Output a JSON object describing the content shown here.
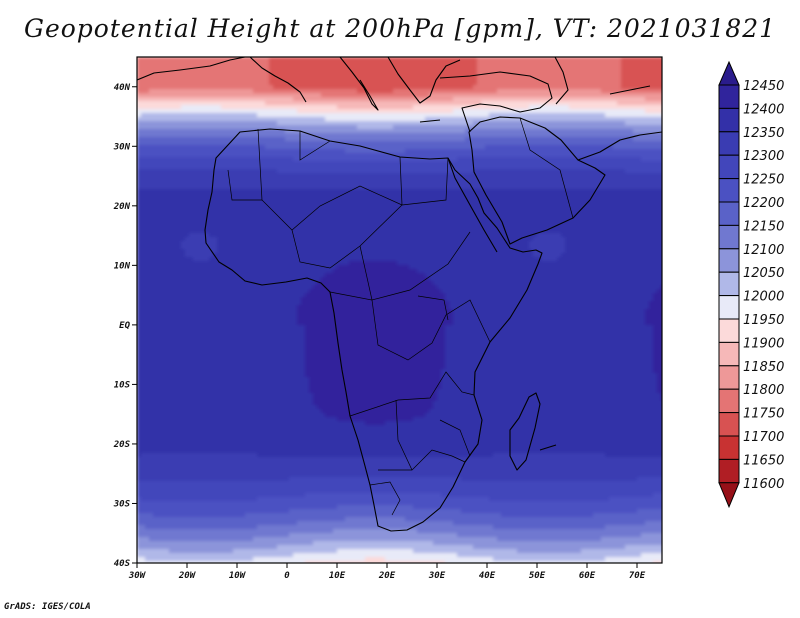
{
  "title": "Geopotential Height at 200hPa [gpm], VT: 2021031821",
  "credit": "GrADS: IGES/COLA",
  "map": {
    "lon_range": [
      -30,
      75
    ],
    "lat_range": [
      -40,
      45
    ],
    "lon_ticks": [
      {
        "value": -30,
        "label": "30W"
      },
      {
        "value": -20,
        "label": "20W"
      },
      {
        "value": -10,
        "label": "10W"
      },
      {
        "value": 0,
        "label": "0"
      },
      {
        "value": 10,
        "label": "10E"
      },
      {
        "value": 20,
        "label": "20E"
      },
      {
        "value": 30,
        "label": "30E"
      },
      {
        "value": 40,
        "label": "40E"
      },
      {
        "value": 50,
        "label": "50E"
      },
      {
        "value": 60,
        "label": "60E"
      },
      {
        "value": 70,
        "label": "70E"
      }
    ],
    "lat_ticks": [
      {
        "value": 40,
        "label": "40N"
      },
      {
        "value": 30,
        "label": "30N"
      },
      {
        "value": 20,
        "label": "20N"
      },
      {
        "value": 10,
        "label": "10N"
      },
      {
        "value": 0,
        "label": "EQ"
      },
      {
        "value": -10,
        "label": "10S"
      },
      {
        "value": -20,
        "label": "20S"
      },
      {
        "value": -30,
        "label": "30S"
      },
      {
        "value": -40,
        "label": "40S"
      }
    ]
  },
  "colorbar": {
    "levels": [
      "12450",
      "12400",
      "12350",
      "12300",
      "12250",
      "12200",
      "12150",
      "12100",
      "12050",
      "12000",
      "11950",
      "11900",
      "11850",
      "11800",
      "11750",
      "11700",
      "11650",
      "11600"
    ],
    "colors": [
      "#2a1c8c",
      "#30249c",
      "#3330a8",
      "#3a3cb2",
      "#4246bb",
      "#4b51c2",
      "#5a62c8",
      "#7078d0",
      "#8c94da",
      "#b0b8e8",
      "#e8eaf8",
      "#fcdada",
      "#f6b8b8",
      "#ee9898",
      "#e47474",
      "#d85252",
      "#c83232",
      "#b01e24",
      "#961018"
    ]
  }
}
